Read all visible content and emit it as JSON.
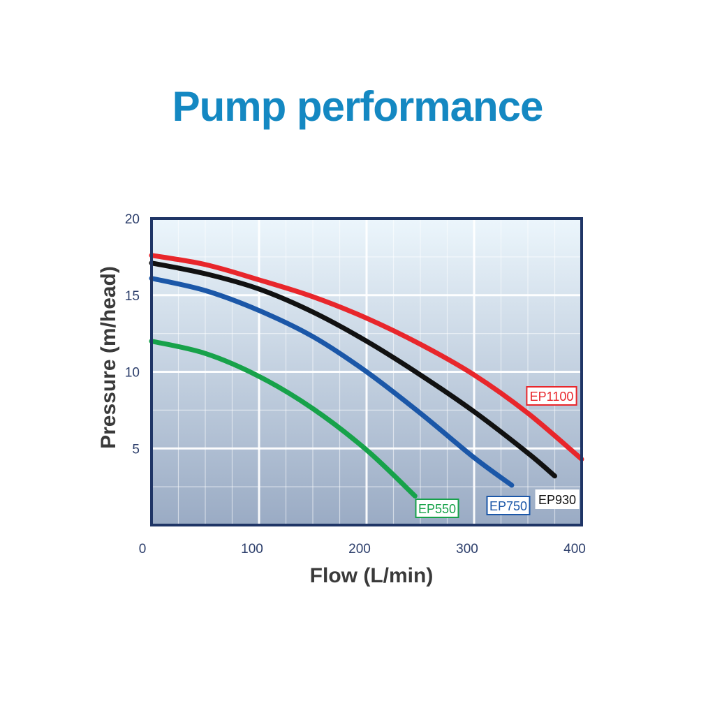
{
  "chart_data": {
    "type": "line",
    "title": "Pump performance",
    "xlabel": "Flow (L/min)",
    "ylabel": "Pressure (m/head)",
    "xlim": [
      0,
      400
    ],
    "ylim": [
      0,
      20
    ],
    "x_ticks": [
      0,
      100,
      200,
      300,
      400
    ],
    "y_ticks": [
      5,
      10,
      15,
      20
    ],
    "grid": true,
    "series": [
      {
        "name": "EP1100",
        "color": "#e8262b",
        "x": [
          0,
          50,
          100,
          150,
          200,
          250,
          300,
          350,
          400
        ],
        "y": [
          17.6,
          17.0,
          16.0,
          14.9,
          13.5,
          11.8,
          9.8,
          7.3,
          4.3
        ]
      },
      {
        "name": "EP930",
        "color": "#111111",
        "x": [
          0,
          50,
          100,
          150,
          200,
          250,
          300,
          350,
          375
        ],
        "y": [
          17.1,
          16.4,
          15.4,
          13.9,
          12.0,
          9.8,
          7.4,
          4.7,
          3.2
        ]
      },
      {
        "name": "EP750",
        "color": "#1b57a8",
        "x": [
          0,
          50,
          100,
          150,
          200,
          250,
          300,
          335
        ],
        "y": [
          16.1,
          15.3,
          14.0,
          12.3,
          10.0,
          7.3,
          4.4,
          2.6
        ]
      },
      {
        "name": "EP550",
        "color": "#17a24a",
        "x": [
          0,
          50,
          100,
          150,
          200,
          245
        ],
        "y": [
          12.0,
          11.2,
          9.7,
          7.6,
          4.9,
          1.9
        ]
      }
    ],
    "colors": {
      "title": "#1488c2",
      "tick": "#2c3e6b",
      "frame": "#1f3566",
      "grid": "#ffffff",
      "bg_top": "#ecf6fc",
      "bg_bottom": "#9aabc4"
    }
  }
}
